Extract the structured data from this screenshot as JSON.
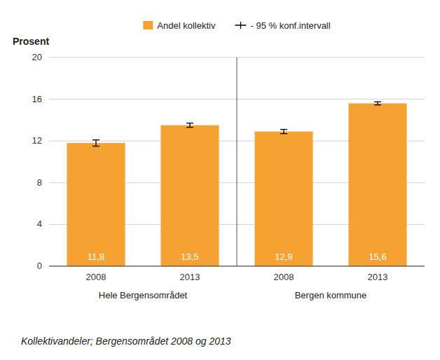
{
  "chart_data": {
    "type": "bar",
    "y_label": "Prosent",
    "caption": "Kollektivandeler; Bergensområdet 2008 og 2013",
    "groups": [
      "Hele Bergensområdet",
      "Bergen kommune"
    ],
    "categories": [
      "2008",
      "2013",
      "2008",
      "2013"
    ],
    "series": [
      {
        "name": "Andel kollektiv",
        "color": "#F5A233",
        "values": [
          11.8,
          13.5,
          12.9,
          15.6
        ],
        "errors": [
          0.3,
          0.2,
          0.2,
          0.15
        ],
        "value_labels": [
          "11,8",
          "13,5",
          "12,9",
          "15,6"
        ],
        "error_name": "- 95 % konf.intervall"
      }
    ],
    "ylim": [
      0,
      20
    ],
    "yticks": [
      0,
      4,
      8,
      12,
      16,
      20
    ],
    "grid": true,
    "legend": "top",
    "data_labels": true
  }
}
